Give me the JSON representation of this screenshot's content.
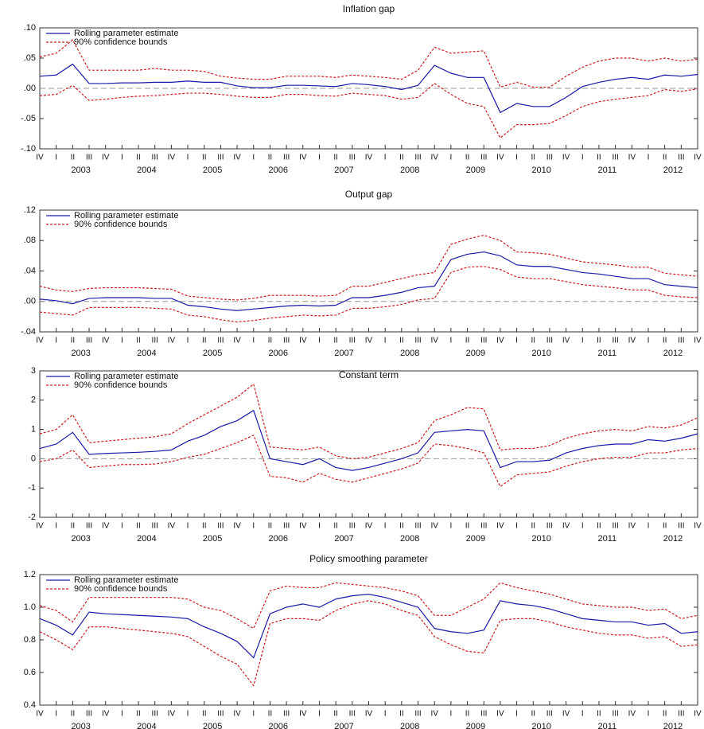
{
  "chart_data": [
    {
      "type": "line",
      "title": "Inflation gap",
      "categories": [
        "IV",
        "I",
        "II",
        "III",
        "IV",
        "I",
        "II",
        "III",
        "IV",
        "I",
        "II",
        "III",
        "IV",
        "I",
        "II",
        "III",
        "IV",
        "I",
        "II",
        "III",
        "IV",
        "I",
        "II",
        "III",
        "IV",
        "I",
        "II",
        "III",
        "IV",
        "I",
        "II",
        "III",
        "IV",
        "I",
        "II",
        "III",
        "IV",
        "I",
        "II",
        "III",
        "IV"
      ],
      "years": [
        "2003",
        "2004",
        "2005",
        "2006",
        "2007",
        "2008",
        "2009",
        "2010",
        "2011",
        "2012"
      ],
      "ylim": [
        -0.1,
        0.1
      ],
      "yticks": [
        {
          "value": 0.1,
          "label": ".10"
        },
        {
          "value": 0.05,
          "label": ".05"
        },
        {
          "value": 0,
          "label": ".00"
        },
        {
          "value": -0.05,
          "label": "-.05"
        },
        {
          "value": -0.1,
          "label": "-.10"
        }
      ],
      "zero_line": true,
      "legend": "upper left",
      "series": [
        {
          "name": "Rolling parameter estimate",
          "color": "#1a1aa6",
          "values": [
            0.02,
            0.022,
            0.04,
            0.008,
            0.008,
            0.009,
            0.009,
            0.01,
            0.01,
            0.012,
            0.01,
            0.01,
            0.004,
            0.001,
            0.001,
            0.005,
            0.005,
            0.004,
            0.003,
            0.008,
            0.006,
            0.003,
            -0.002,
            0.005,
            0.038,
            0.025,
            0.018,
            0.018,
            -0.04,
            -0.025,
            -0.03,
            -0.03,
            -0.015,
            0.003,
            0.01,
            0.015,
            0.018,
            0.015,
            0.022,
            0.02,
            0.023
          ]
        },
        {
          "name": "90% confidence bounds",
          "color": "#cc1f1f",
          "values": [
            0.052,
            0.058,
            0.08,
            0.03,
            0.03,
            0.03,
            0.03,
            0.033,
            0.03,
            0.03,
            0.028,
            0.02,
            0.017,
            0.015,
            0.015,
            0.02,
            0.02,
            0.02,
            0.018,
            0.022,
            0.02,
            0.018,
            0.015,
            0.03,
            0.068,
            0.058,
            0.06,
            0.062,
            0.002,
            0.01,
            0.002,
            0.002,
            0.02,
            0.035,
            0.045,
            0.05,
            0.05,
            0.045,
            0.05,
            0.045,
            0.048
          ],
          "lower": [
            -0.012,
            -0.01,
            0.005,
            -0.02,
            -0.018,
            -0.015,
            -0.013,
            -0.012,
            -0.01,
            -0.008,
            -0.008,
            -0.01,
            -0.013,
            -0.015,
            -0.015,
            -0.01,
            -0.01,
            -0.012,
            -0.013,
            -0.008,
            -0.01,
            -0.012,
            -0.018,
            -0.015,
            0.008,
            -0.01,
            -0.025,
            -0.03,
            -0.082,
            -0.06,
            -0.06,
            -0.058,
            -0.045,
            -0.03,
            -0.022,
            -0.018,
            -0.015,
            -0.012,
            -0.002,
            -0.005,
            -0.001
          ]
        }
      ]
    },
    {
      "type": "line",
      "title": "Output gap",
      "categories": [
        "IV",
        "I",
        "II",
        "III",
        "IV",
        "I",
        "II",
        "III",
        "IV",
        "I",
        "II",
        "III",
        "IV",
        "I",
        "II",
        "III",
        "IV",
        "I",
        "II",
        "III",
        "IV",
        "I",
        "II",
        "III",
        "IV",
        "I",
        "II",
        "III",
        "IV",
        "I",
        "II",
        "III",
        "IV",
        "I",
        "II",
        "III",
        "IV",
        "I",
        "II",
        "III",
        "IV"
      ],
      "years": [
        "2003",
        "2004",
        "2005",
        "2006",
        "2007",
        "2008",
        "2009",
        "2010",
        "2011",
        "2012"
      ],
      "ylim": [
        -0.04,
        0.12
      ],
      "yticks": [
        {
          "value": 0.12,
          "label": ".12"
        },
        {
          "value": 0.08,
          "label": ".08"
        },
        {
          "value": 0.04,
          "label": ".04"
        },
        {
          "value": 0,
          "label": ".00"
        },
        {
          "value": -0.04,
          "label": "-.04"
        }
      ],
      "zero_line": true,
      "legend": "upper left",
      "series": [
        {
          "name": "Rolling parameter estimate",
          "color": "#1a1aa6",
          "values": [
            0.003,
            0.001,
            -0.003,
            0.004,
            0.005,
            0.005,
            0.005,
            0.004,
            0.004,
            -0.005,
            -0.007,
            -0.01,
            -0.012,
            -0.01,
            -0.008,
            -0.006,
            -0.005,
            -0.006,
            -0.005,
            0.005,
            0.005,
            0.008,
            0.012,
            0.018,
            0.02,
            0.055,
            0.062,
            0.065,
            0.06,
            0.048,
            0.046,
            0.046,
            0.042,
            0.038,
            0.036,
            0.033,
            0.03,
            0.03,
            0.022,
            0.02,
            0.018
          ]
        },
        {
          "name": "90% confidence bounds",
          "color": "#cc1f1f",
          "values": [
            0.02,
            0.015,
            0.013,
            0.017,
            0.018,
            0.018,
            0.018,
            0.017,
            0.016,
            0.007,
            0.005,
            0.003,
            0.002,
            0.004,
            0.008,
            0.008,
            0.008,
            0.007,
            0.008,
            0.02,
            0.02,
            0.025,
            0.03,
            0.035,
            0.038,
            0.075,
            0.082,
            0.087,
            0.08,
            0.065,
            0.064,
            0.062,
            0.057,
            0.052,
            0.05,
            0.048,
            0.045,
            0.045,
            0.037,
            0.035,
            0.033
          ],
          "lower": [
            -0.014,
            -0.016,
            -0.018,
            -0.008,
            -0.008,
            -0.008,
            -0.008,
            -0.009,
            -0.01,
            -0.018,
            -0.02,
            -0.024,
            -0.027,
            -0.025,
            -0.022,
            -0.02,
            -0.018,
            -0.019,
            -0.018,
            -0.009,
            -0.009,
            -0.007,
            -0.004,
            0.002,
            0.004,
            0.038,
            0.045,
            0.046,
            0.042,
            0.032,
            0.03,
            0.03,
            0.026,
            0.022,
            0.02,
            0.018,
            0.015,
            0.015,
            0.008,
            0.006,
            0.005
          ]
        }
      ]
    },
    {
      "type": "line",
      "title": "Constant term",
      "categories": [
        "IV",
        "I",
        "II",
        "III",
        "IV",
        "I",
        "II",
        "III",
        "IV",
        "I",
        "II",
        "III",
        "IV",
        "I",
        "II",
        "III",
        "IV",
        "I",
        "II",
        "III",
        "IV",
        "I",
        "II",
        "III",
        "IV",
        "I",
        "II",
        "III",
        "IV",
        "I",
        "II",
        "III",
        "IV",
        "I",
        "II",
        "III",
        "IV",
        "I",
        "II",
        "III",
        "IV"
      ],
      "years": [
        "2003",
        "2004",
        "2005",
        "2006",
        "2007",
        "2008",
        "2009",
        "2010",
        "2011",
        "2012"
      ],
      "ylim": [
        -2,
        3
      ],
      "yticks": [
        3,
        2,
        1,
        0,
        -1,
        -2
      ],
      "zero_line": true,
      "legend": "upper left",
      "series": [
        {
          "name": "Rolling parameter estimate",
          "color": "#1a1aa6",
          "values": [
            0.35,
            0.5,
            0.9,
            0.15,
            0.18,
            0.2,
            0.22,
            0.25,
            0.3,
            0.6,
            0.8,
            1.1,
            1.3,
            1.65,
            0.0,
            -0.1,
            -0.2,
            0.0,
            -0.3,
            -0.4,
            -0.3,
            -0.15,
            0.0,
            0.2,
            0.9,
            0.95,
            1.0,
            0.95,
            -0.3,
            -0.1,
            -0.1,
            -0.05,
            0.2,
            0.35,
            0.45,
            0.5,
            0.5,
            0.65,
            0.6,
            0.7,
            0.85
          ]
        },
        {
          "name": "90% confidence bounds",
          "color": "#cc1f1f",
          "values": [
            0.85,
            1.0,
            1.5,
            0.55,
            0.6,
            0.65,
            0.7,
            0.75,
            0.85,
            1.2,
            1.5,
            1.8,
            2.1,
            2.55,
            0.4,
            0.35,
            0.3,
            0.4,
            0.1,
            0.0,
            0.05,
            0.2,
            0.35,
            0.55,
            1.3,
            1.5,
            1.75,
            1.7,
            0.3,
            0.35,
            0.35,
            0.45,
            0.7,
            0.85,
            0.95,
            1.0,
            0.95,
            1.1,
            1.05,
            1.15,
            1.4
          ],
          "lower": [
            -0.1,
            0.0,
            0.3,
            -0.3,
            -0.25,
            -0.2,
            -0.2,
            -0.18,
            -0.1,
            0.05,
            0.15,
            0.35,
            0.55,
            0.8,
            -0.6,
            -0.65,
            -0.8,
            -0.5,
            -0.7,
            -0.8,
            -0.65,
            -0.5,
            -0.35,
            -0.15,
            0.5,
            0.45,
            0.35,
            0.2,
            -0.95,
            -0.55,
            -0.5,
            -0.45,
            -0.25,
            -0.1,
            0.0,
            0.05,
            0.05,
            0.2,
            0.2,
            0.3,
            0.35
          ]
        }
      ]
    },
    {
      "type": "line",
      "title": "Policy smoothing parameter",
      "categories": [
        "IV",
        "I",
        "II",
        "III",
        "IV",
        "I",
        "II",
        "III",
        "IV",
        "I",
        "II",
        "III",
        "IV",
        "I",
        "II",
        "III",
        "IV",
        "I",
        "II",
        "III",
        "IV",
        "I",
        "II",
        "III",
        "IV",
        "I",
        "II",
        "III",
        "IV",
        "I",
        "II",
        "III",
        "IV",
        "I",
        "II",
        "III",
        "IV",
        "I",
        "II",
        "III",
        "IV"
      ],
      "years": [
        "2003",
        "2004",
        "2005",
        "2006",
        "2007",
        "2008",
        "2009",
        "2010",
        "2011",
        "2012"
      ],
      "ylim": [
        0.4,
        1.2
      ],
      "yticks": [
        1.2,
        {
          "value": 1,
          "label": "1.0"
        },
        0.8,
        0.6,
        0.4
      ],
      "zero_line": false,
      "legend": "upper left",
      "series": [
        {
          "name": "Rolling parameter estimate",
          "color": "#1a1aa6",
          "values": [
            0.93,
            0.89,
            0.83,
            0.97,
            0.96,
            0.955,
            0.95,
            0.945,
            0.94,
            0.93,
            0.88,
            0.84,
            0.79,
            0.69,
            0.96,
            1.0,
            1.02,
            1.0,
            1.05,
            1.07,
            1.08,
            1.06,
            1.03,
            1.0,
            0.87,
            0.85,
            0.84,
            0.86,
            1.04,
            1.02,
            1.01,
            0.99,
            0.96,
            0.93,
            0.92,
            0.91,
            0.91,
            0.89,
            0.9,
            0.84,
            0.85
          ]
        },
        {
          "name": "90% confidence bounds",
          "color": "#cc1f1f",
          "values": [
            1.01,
            0.98,
            0.91,
            1.06,
            1.06,
            1.06,
            1.06,
            1.06,
            1.06,
            1.05,
            1.0,
            0.98,
            0.93,
            0.87,
            1.1,
            1.13,
            1.12,
            1.12,
            1.15,
            1.14,
            1.13,
            1.12,
            1.1,
            1.07,
            0.95,
            0.95,
            1.0,
            1.05,
            1.15,
            1.12,
            1.1,
            1.08,
            1.05,
            1.02,
            1.01,
            1.0,
            1.0,
            0.98,
            0.99,
            0.93,
            0.95
          ],
          "lower": [
            0.85,
            0.8,
            0.74,
            0.88,
            0.88,
            0.87,
            0.86,
            0.85,
            0.84,
            0.82,
            0.76,
            0.7,
            0.65,
            0.52,
            0.9,
            0.93,
            0.93,
            0.92,
            0.98,
            1.02,
            1.04,
            1.02,
            0.98,
            0.95,
            0.82,
            0.77,
            0.73,
            0.72,
            0.92,
            0.93,
            0.93,
            0.91,
            0.88,
            0.86,
            0.84,
            0.83,
            0.83,
            0.81,
            0.82,
            0.76,
            0.77
          ]
        }
      ]
    }
  ]
}
